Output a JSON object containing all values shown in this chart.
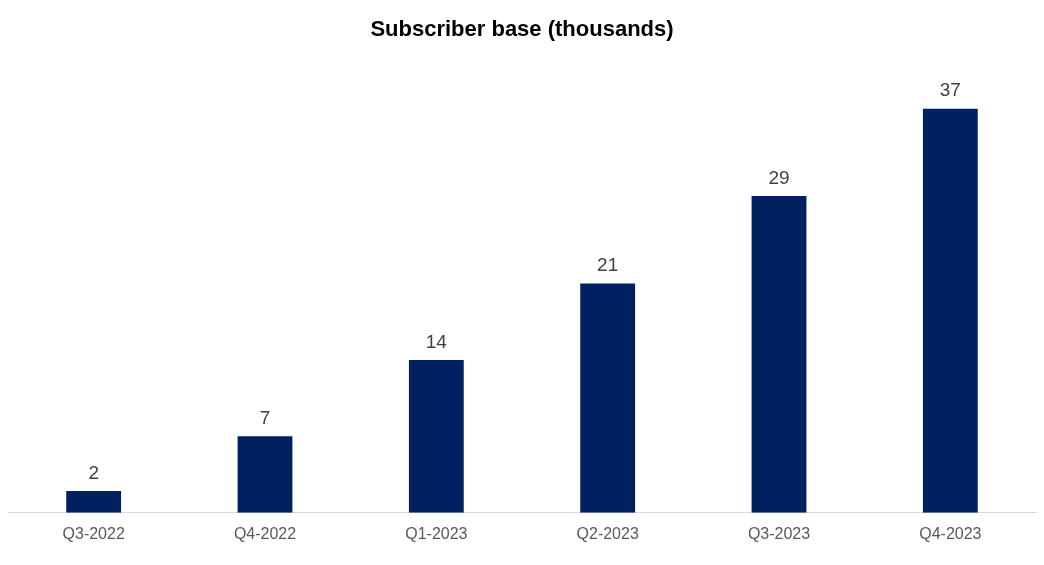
{
  "chart_data": {
    "type": "bar",
    "title": "Subscriber base (thousands)",
    "categories": [
      "Q3-2022",
      "Q4-2022",
      "Q1-2023",
      "Q2-2023",
      "Q3-2023",
      "Q4-2023"
    ],
    "values": [
      2,
      7,
      14,
      21,
      29,
      37
    ],
    "color": "#002060",
    "data_labels": true,
    "grid": false,
    "legend": false
  }
}
